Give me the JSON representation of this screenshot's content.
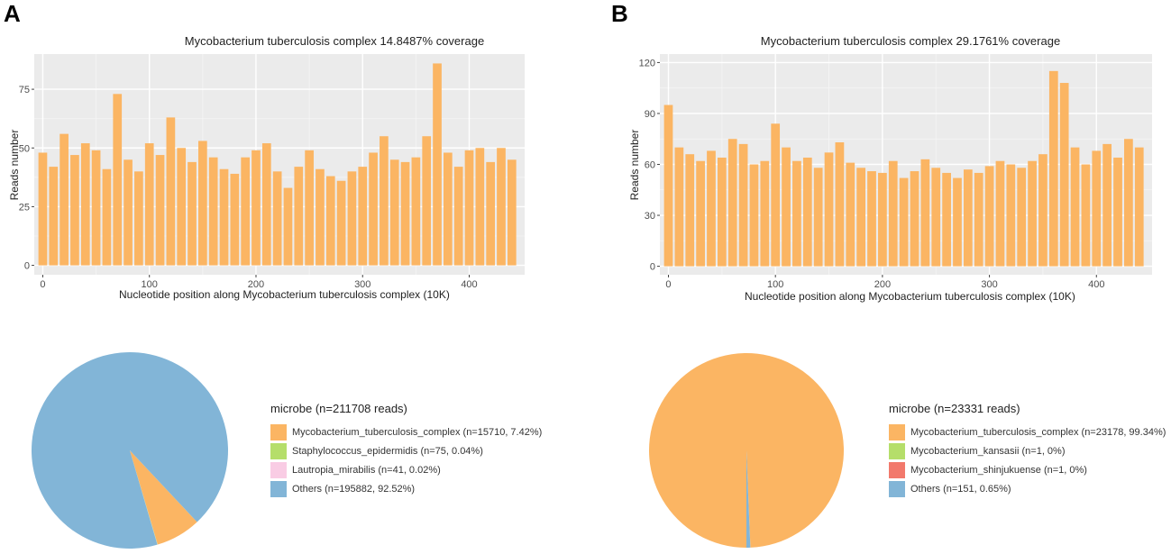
{
  "panels": [
    {
      "letter": "A",
      "title": "Mycobacterium tuberculosis complex  14.8487% coverage",
      "xlabel": "Nucleotide position along Mycobacterium tuberculosis complex  (10K)",
      "ylabel": "Reads number",
      "x_ticks": [
        "0",
        "100",
        "200",
        "300",
        "400"
      ],
      "y_ticks": [
        "0",
        "25",
        "50",
        "75"
      ],
      "legend": {
        "title": "microbe (n=211708 reads)",
        "items": [
          {
            "label": "Mycobacterium_tuberculosis_complex (n=15710, 7.42%)",
            "color": "#fbb563"
          },
          {
            "label": "Staphylococcus_epidermidis (n=75, 0.04%)",
            "color": "#b5de6a"
          },
          {
            "label": "Lautropia_mirabilis (n=41, 0.02%)",
            "color": "#f9cce4"
          },
          {
            "label": "Others (n=195882, 92.52%)",
            "color": "#82b5d7"
          }
        ]
      }
    },
    {
      "letter": "B",
      "title": "Mycobacterium tuberculosis complex  29.1761% coverage",
      "xlabel": "Nucleotide position along Mycobacterium tuberculosis complex  (10K)",
      "ylabel": "Reads number",
      "x_ticks": [
        "0",
        "100",
        "200",
        "300",
        "400"
      ],
      "y_ticks": [
        "0",
        "30",
        "60",
        "90",
        "120"
      ],
      "legend": {
        "title": "microbe (n=23331 reads)",
        "items": [
          {
            "label": "Mycobacterium_tuberculosis_complex (n=23178, 99.34%)",
            "color": "#fbb563"
          },
          {
            "label": "Mycobacterium_kansasii (n=1, 0%)",
            "color": "#b5de6a"
          },
          {
            "label": "Mycobacterium_shinjukuense (n=1, 0%)",
            "color": "#f2796c"
          },
          {
            "label": "Others (n=151, 0.65%)",
            "color": "#82b5d7"
          }
        ]
      }
    }
  ],
  "chart_data": [
    {
      "type": "bar",
      "title": "Mycobacterium tuberculosis complex  14.8487% coverage",
      "xlabel": "Nucleotide position along Mycobacterium tuberculosis complex  (10K)",
      "ylabel": "Reads number",
      "xlim": [
        -8,
        452
      ],
      "ylim": [
        -4,
        90
      ],
      "x_ticks": [
        0,
        100,
        200,
        300,
        400
      ],
      "y_ticks": [
        0,
        25,
        50,
        75
      ],
      "bar_color": "#fbb563",
      "x": [
        0,
        10,
        20,
        30,
        40,
        50,
        60,
        70,
        80,
        90,
        100,
        110,
        120,
        130,
        140,
        150,
        160,
        170,
        180,
        190,
        200,
        210,
        220,
        230,
        240,
        250,
        260,
        270,
        280,
        290,
        300,
        310,
        320,
        330,
        340,
        350,
        360,
        370,
        380,
        390,
        400,
        410,
        420,
        430,
        440
      ],
      "values": [
        48,
        42,
        56,
        47,
        52,
        49,
        41,
        73,
        45,
        40,
        52,
        47,
        63,
        50,
        44,
        53,
        46,
        41,
        39,
        46,
        49,
        52,
        40,
        33,
        42,
        49,
        41,
        38,
        36,
        40,
        42,
        48,
        55,
        45,
        44,
        46,
        55,
        86,
        48,
        42,
        49,
        50,
        44,
        50,
        45
      ]
    },
    {
      "type": "pie",
      "title": "microbe (n=211708 reads)",
      "labels": [
        "Mycobacterium_tuberculosis_complex",
        "Staphylococcus_epidermidis",
        "Lautropia_mirabilis",
        "Others"
      ],
      "values": [
        15710,
        75,
        41,
        195882
      ],
      "percent": [
        7.42,
        0.04,
        0.02,
        92.52
      ],
      "colors": [
        "#fbb563",
        "#b5de6a",
        "#f9cce4",
        "#82b5d7"
      ]
    },
    {
      "type": "bar",
      "title": "Mycobacterium tuberculosis complex  29.1761% coverage",
      "xlabel": "Nucleotide position along Mycobacterium tuberculosis complex  (10K)",
      "ylabel": "Reads number",
      "xlim": [
        -8,
        452
      ],
      "ylim": [
        -5,
        125
      ],
      "x_ticks": [
        0,
        100,
        200,
        300,
        400
      ],
      "y_ticks": [
        0,
        30,
        60,
        90,
        120
      ],
      "bar_color": "#fbb563",
      "x": [
        0,
        10,
        20,
        30,
        40,
        50,
        60,
        70,
        80,
        90,
        100,
        110,
        120,
        130,
        140,
        150,
        160,
        170,
        180,
        190,
        200,
        210,
        220,
        230,
        240,
        250,
        260,
        270,
        280,
        290,
        300,
        310,
        320,
        330,
        340,
        350,
        360,
        370,
        380,
        390,
        400,
        410,
        420,
        430,
        440
      ],
      "values": [
        95,
        70,
        66,
        62,
        68,
        64,
        75,
        72,
        60,
        62,
        84,
        70,
        62,
        64,
        58,
        67,
        73,
        61,
        58,
        56,
        55,
        62,
        52,
        56,
        63,
        58,
        55,
        52,
        57,
        55,
        59,
        62,
        60,
        58,
        62,
        66,
        115,
        108,
        70,
        60,
        68,
        72,
        64,
        75,
        70
      ]
    },
    {
      "type": "pie",
      "title": "microbe (n=23331 reads)",
      "labels": [
        "Mycobacterium_tuberculosis_complex",
        "Mycobacterium_kansasii",
        "Mycobacterium_shinjukuense",
        "Others"
      ],
      "values": [
        23178,
        1,
        1,
        151
      ],
      "percent": [
        99.34,
        0,
        0,
        0.65
      ],
      "colors": [
        "#fbb563",
        "#b5de6a",
        "#f2796c",
        "#82b5d7"
      ]
    }
  ]
}
